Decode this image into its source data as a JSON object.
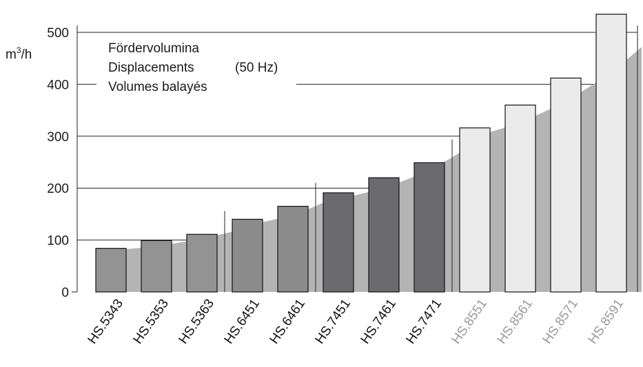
{
  "chart_data": {
    "type": "bar",
    "unit_label_base": "m",
    "unit_label_exp": "3",
    "unit_label_tail": "/h",
    "legend_lines": [
      "Fördervolumina",
      "Displacements",
      "Volumes balayés"
    ],
    "legend_frequency": "(50 Hz)",
    "ylim": [
      0,
      500
    ],
    "yticks": [
      0,
      100,
      200,
      300,
      400,
      500
    ],
    "grid": true,
    "categories": [
      "HS.5343",
      "HS.5353",
      "HS.5363",
      "HS.6451",
      "HS.6461",
      "HS.7451",
      "HS.7461",
      "HS.7471",
      "HS.8551",
      "HS.8561",
      "HS.8571",
      "HS.8591"
    ],
    "values": [
      84,
      99,
      111,
      140,
      165,
      191,
      220,
      249,
      316,
      360,
      412,
      535
    ],
    "groups": [
      {
        "members": [
          0,
          1,
          2
        ],
        "bar_color": "#939393",
        "label_color": "#111111",
        "trend": [
          80,
          116
        ]
      },
      {
        "members": [
          3,
          4
        ],
        "bar_color": "#8c8c8c",
        "label_color": "#111111",
        "trend": [
          130,
          172
        ]
      },
      {
        "members": [
          5,
          6,
          7
        ],
        "bar_color": "#6b6b6d",
        "label_color": "#111111",
        "trend": [
          180,
          268
        ]
      },
      {
        "members": [
          8,
          9,
          10,
          11
        ],
        "bar_color": "#ebebeb",
        "label_color": "#9a9a9a",
        "trend": [
          300,
          472
        ]
      }
    ],
    "trend_color": "#b4b4b4"
  }
}
